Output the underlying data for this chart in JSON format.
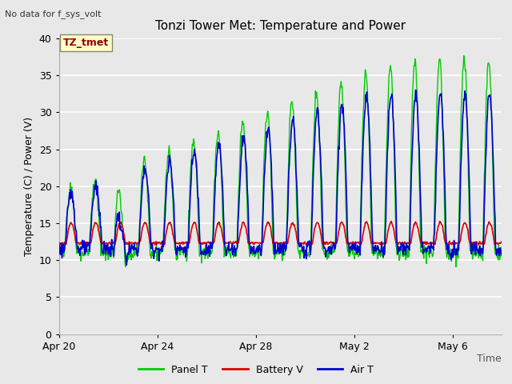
{
  "title": "Tonzi Tower Met: Temperature and Power",
  "top_left_text": "No data for f_sys_volt",
  "ylabel": "Temperature (C) / Power (V)",
  "xlabel": "Time",
  "annotation_label": "TZ_tmet",
  "ylim": [
    0,
    40
  ],
  "xlim_days": [
    0,
    18
  ],
  "yticks": [
    0,
    5,
    10,
    15,
    20,
    25,
    30,
    35,
    40
  ],
  "xtick_labels": [
    "Apr 20",
    "Apr 24",
    "Apr 28",
    "May 2",
    "May 6"
  ],
  "xtick_positions": [
    0,
    4,
    8,
    12,
    16
  ],
  "legend_entries": [
    "Panel T",
    "Battery V",
    "Air T"
  ],
  "legend_colors": [
    "#00cc00",
    "#dd0000",
    "#0000cc"
  ],
  "axes_bg": "#e8e8e8",
  "title_fontsize": 11,
  "label_fontsize": 9,
  "tick_fontsize": 9,
  "panel_t_color": "#00cc00",
  "battery_v_color": "#dd0000",
  "air_t_color": "#0000cc",
  "fig_bg": "#e8e8e8"
}
